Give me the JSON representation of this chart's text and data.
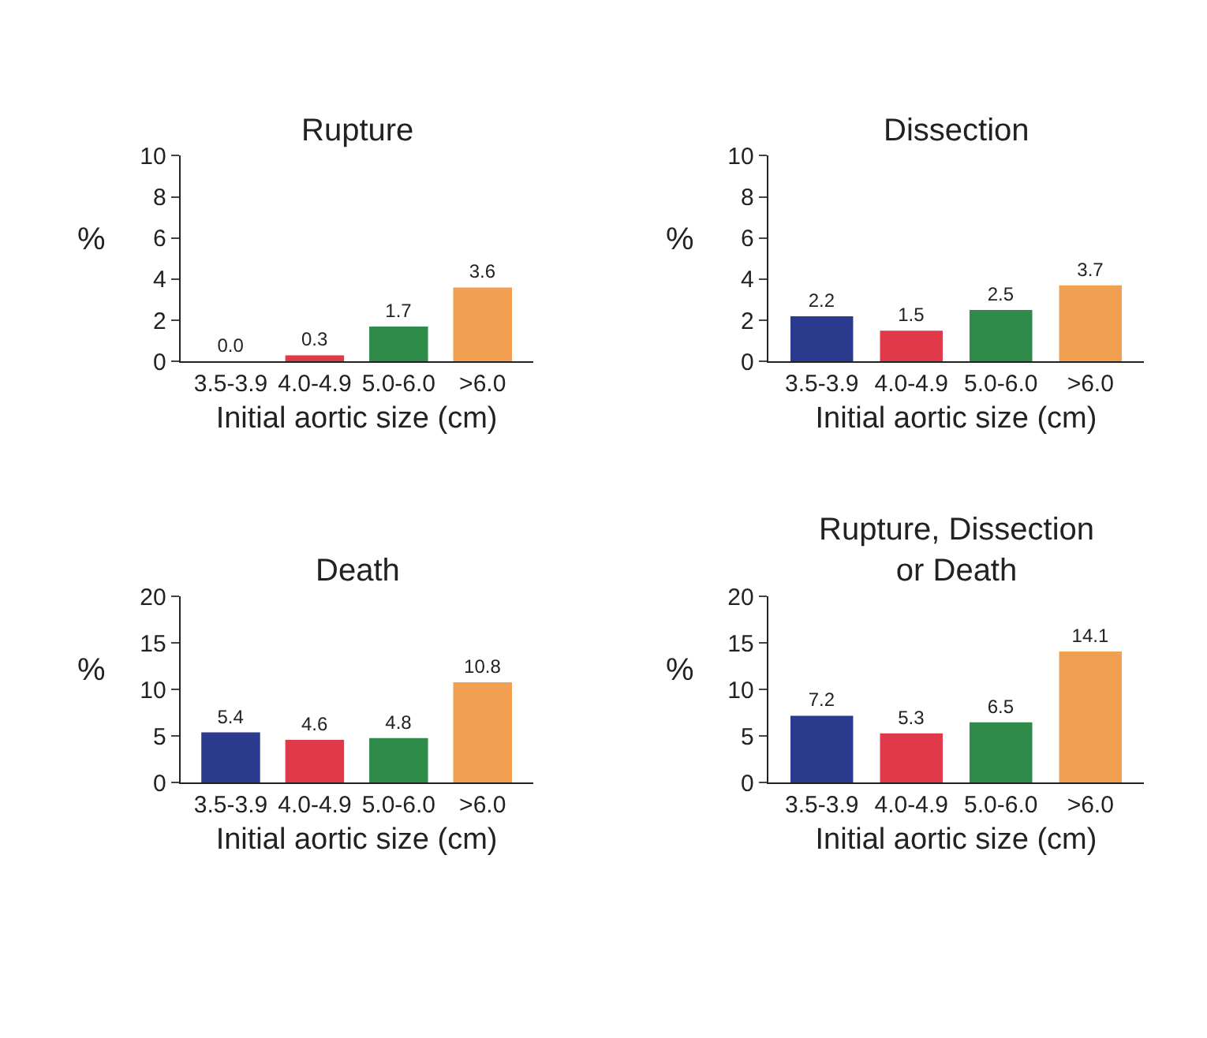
{
  "chart_data": [
    {
      "type": "bar",
      "title": "Rupture",
      "ylabel": "%",
      "xlabel": "Initial aortic size (cm)",
      "categories": [
        "3.5-3.9",
        "4.0-4.9",
        "5.0-6.0",
        ">6.0"
      ],
      "values": [
        0.0,
        0.3,
        1.7,
        3.6
      ],
      "value_labels": [
        "0.0",
        "0.3",
        "1.7",
        "3.6"
      ],
      "colors": [
        "#2a3a8c",
        "#e03a4a",
        "#2e8b4a",
        "#f0a050"
      ],
      "ylim": [
        0,
        10
      ],
      "yticks": [
        0,
        2,
        4,
        6,
        8,
        10
      ]
    },
    {
      "type": "bar",
      "title": "Dissection",
      "ylabel": "%",
      "xlabel": "Initial aortic size (cm)",
      "categories": [
        "3.5-3.9",
        "4.0-4.9",
        "5.0-6.0",
        ">6.0"
      ],
      "values": [
        2.2,
        1.5,
        2.5,
        3.7
      ],
      "colors": [
        "#2a3a8c",
        "#e03a4a",
        "#2e8b4a",
        "#f0a050"
      ],
      "ylim": [
        0,
        10
      ],
      "yticks": [
        0,
        2,
        4,
        6,
        8,
        10
      ],
      "data_labels": true
    },
    {
      "type": "bar",
      "title": "Death",
      "ylabel": "%",
      "xlabel": "Initial aortic size (cm)",
      "categories": [
        "3.5-3.9",
        "4.0-4.9",
        "5.0-6.0",
        ">6.0"
      ],
      "values": [
        5.4,
        4.6,
        4.8,
        10.8
      ],
      "colors": [
        "#2a3a8c",
        "#e03a4a",
        "#2e8b4a",
        "#f0a050"
      ],
      "ylim": [
        0,
        20
      ],
      "yticks": [
        0,
        5,
        10,
        15,
        20
      ],
      "data_labels": true
    },
    {
      "type": "bar",
      "title": "Rupture, Dissection\nor Death",
      "ylabel": "%",
      "xlabel": "Initial aortic size (cm)",
      "categories": [
        "3.5-3.9",
        "4.0-4.9",
        "5.0-6.0",
        ">6.0"
      ],
      "values": [
        7.2,
        5.3,
        6.5,
        14.1
      ],
      "colors": [
        "#2a3a8c",
        "#e03a4a",
        "#2e8b4a",
        "#f0a050"
      ],
      "ylim": [
        0,
        20
      ],
      "yticks": [
        0,
        5,
        10,
        15,
        20
      ],
      "data_labels": true
    }
  ]
}
